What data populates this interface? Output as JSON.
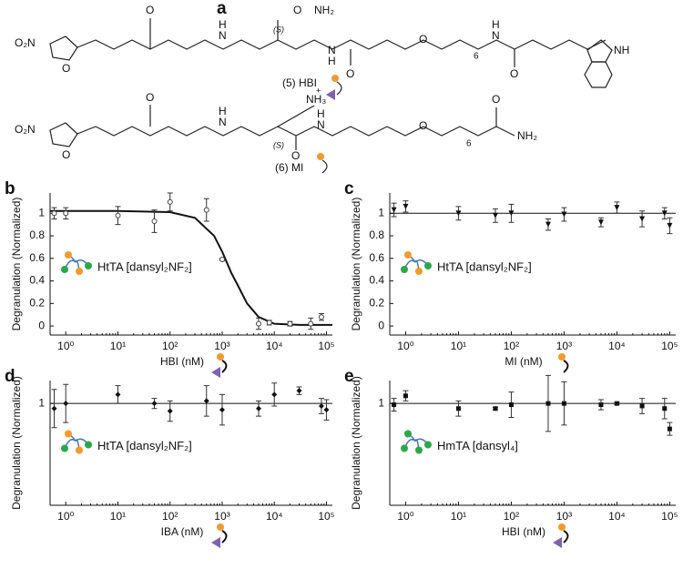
{
  "structure": {
    "panel": "a",
    "labels": [
      "O",
      "NH₂",
      "(S)",
      "O",
      "N",
      "H",
      "O₂N",
      "O",
      "H",
      "N",
      "O",
      "O",
      "6",
      "H",
      "N",
      "O",
      "NH",
      "(5) HBI",
      "+",
      "NH₃",
      "O₂N",
      "O",
      "O",
      "N",
      "H",
      "(S)",
      "O",
      "H",
      "N",
      "O",
      "6",
      "O",
      "NH₂",
      "(6) MI"
    ]
  },
  "chart_data": [
    {
      "type": "scatter",
      "panel": "b",
      "y_label": "Degranulation (Normalized)",
      "x_label": "HBI (nM)",
      "annotation": "HtTA [dansyl₂NF₂]",
      "log_x": true,
      "marker": "circle-open",
      "color": "#444",
      "xlim": [
        0.5,
        130000
      ],
      "xticks": [
        {
          "value": 1,
          "label": "10⁰"
        },
        {
          "value": 10,
          "label": "10¹"
        },
        {
          "value": 100,
          "label": "10²"
        },
        {
          "value": 1000,
          "label": "10³"
        },
        {
          "value": 10000,
          "label": "10⁴"
        },
        {
          "value": 100000,
          "label": "10⁵"
        }
      ],
      "ylim": [
        -0.08,
        1.18
      ],
      "yticks": [
        0,
        0.2,
        0.4,
        0.6,
        0.8,
        1
      ],
      "x": [
        0.6,
        1,
        10,
        50,
        100,
        500,
        1000,
        5000,
        8000,
        20000,
        50000,
        80000
      ],
      "values": [
        1.0,
        1.0,
        0.98,
        0.93,
        1.1,
        1.03,
        0.59,
        0.02,
        0.03,
        0.02,
        0.02,
        0.08
      ],
      "errors": [
        0.05,
        0.05,
        0.08,
        0.1,
        0.08,
        0.1,
        0.01,
        0.05,
        0.02,
        0.02,
        0.05,
        0.03
      ],
      "fit": {
        "x": [
          0.5,
          10,
          100,
          300,
          700,
          1000,
          1500,
          2000,
          3000,
          5000,
          10000,
          30000,
          130000
        ],
        "values": [
          1.02,
          1.02,
          1.01,
          0.96,
          0.8,
          0.66,
          0.47,
          0.36,
          0.2,
          0.08,
          0.02,
          0.01,
          0.01
        ]
      }
    },
    {
      "type": "scatter",
      "panel": "c",
      "y_label": "Degranulation (Normalized)",
      "x_label": "MI (nM)",
      "annotation": "HtTA [dansyl₂NF₂]",
      "log_x": true,
      "marker": "triangle-down",
      "color": "#111",
      "xlim": [
        0.5,
        130000
      ],
      "xticks": [
        {
          "value": 1,
          "label": "10⁰"
        },
        {
          "value": 10,
          "label": "10¹"
        },
        {
          "value": 100,
          "label": "10²"
        },
        {
          "value": 1000,
          "label": "10³"
        },
        {
          "value": 10000,
          "label": "10⁴"
        },
        {
          "value": 100000,
          "label": "10⁵"
        }
      ],
      "ylim": [
        -0.08,
        1.18
      ],
      "yticks": [
        0,
        0.2,
        0.4,
        0.6,
        0.8,
        1
      ],
      "x": [
        0.6,
        1,
        10,
        50,
        100,
        500,
        1000,
        5000,
        10000,
        30000,
        80000,
        100000
      ],
      "values": [
        1.03,
        1.06,
        1.0,
        0.98,
        1.0,
        0.9,
        0.99,
        0.92,
        1.05,
        0.95,
        1.0,
        0.89
      ],
      "errors": [
        0.06,
        0.05,
        0.06,
        0.06,
        0.08,
        0.05,
        0.06,
        0.04,
        0.05,
        0.07,
        0.05,
        0.07
      ],
      "reference_line": 1
    },
    {
      "type": "scatter",
      "panel": "d",
      "y_label": "Degranulation (Normalized)",
      "x_label": "IBA (nM)",
      "annotation": "HtTA [dansyl₂NF₂]",
      "log_x": true,
      "marker": "diamond",
      "color": "#111",
      "xlim": [
        0.5,
        130000
      ],
      "xticks": [
        {
          "value": 1,
          "label": "10⁰"
        },
        {
          "value": 10,
          "label": "10¹"
        },
        {
          "value": 100,
          "label": "10²"
        },
        {
          "value": 1000,
          "label": "10³"
        },
        {
          "value": 10000,
          "label": "10⁴"
        },
        {
          "value": 100000,
          "label": "10⁵"
        }
      ],
      "ylim": [
        0.2,
        1.18
      ],
      "yticks": [
        1
      ],
      "x": [
        0.6,
        1,
        10,
        50,
        100,
        500,
        1000,
        5000,
        10000,
        30000,
        80000,
        100000
      ],
      "values": [
        0.96,
        1.0,
        1.07,
        1.0,
        0.94,
        1.02,
        0.95,
        0.96,
        1.07,
        1.1,
        0.98,
        0.95
      ],
      "errors": [
        0.15,
        0.15,
        0.07,
        0.04,
        0.08,
        0.12,
        0.12,
        0.06,
        0.09,
        0.03,
        0.06,
        0.08
      ],
      "reference_line": 1
    },
    {
      "type": "scatter",
      "panel": "e",
      "y_label": "Degranulation (Normalized)",
      "x_label": "HBI (nM)",
      "annotation": "HmTA [dansyl₄]",
      "log_x": true,
      "marker": "square",
      "color": "#111",
      "xlim": [
        0.5,
        130000
      ],
      "xticks": [
        {
          "value": 1,
          "label": "10⁰"
        },
        {
          "value": 10,
          "label": "10¹"
        },
        {
          "value": 100,
          "label": "10²"
        },
        {
          "value": 1000,
          "label": "10³"
        },
        {
          "value": 10000,
          "label": "10⁴"
        },
        {
          "value": 100000,
          "label": "10⁵"
        }
      ],
      "ylim": [
        0.2,
        1.18
      ],
      "yticks": [
        1
      ],
      "x": [
        0.6,
        1,
        10,
        50,
        100,
        500,
        1000,
        5000,
        10000,
        30000,
        80000,
        100000
      ],
      "values": [
        0.99,
        1.06,
        0.96,
        0.96,
        0.99,
        1.0,
        1.0,
        0.99,
        1.0,
        0.98,
        0.96,
        0.8
      ],
      "errors": [
        0.05,
        0.04,
        0.06,
        0.01,
        0.1,
        0.22,
        0.17,
        0.04,
        0.01,
        0.06,
        0.08,
        0.05
      ],
      "reference_line": 1
    }
  ]
}
